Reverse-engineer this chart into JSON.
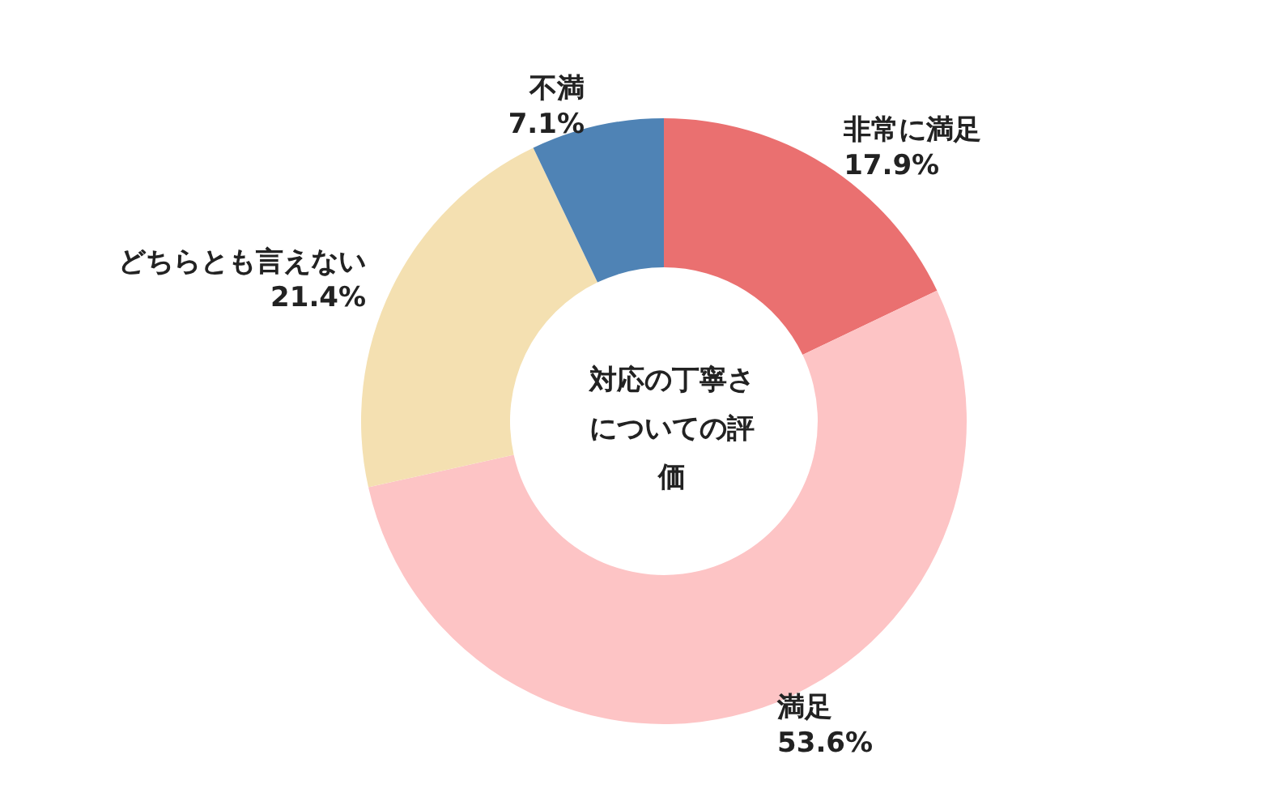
{
  "chart_data": {
    "type": "donut",
    "title": "対応の丁寧さについての評価",
    "categories": [
      "非常に満足",
      "満足",
      "どちらとも言えない",
      "不満"
    ],
    "values": [
      17.9,
      53.6,
      21.4,
      7.1
    ],
    "value_labels": [
      "17.9%",
      "53.6%",
      "21.4%",
      "7.1%"
    ],
    "colors": [
      "#ea7070",
      "#fdc4c5",
      "#f4e0b1",
      "#4f83b5"
    ],
    "legend": false
  }
}
